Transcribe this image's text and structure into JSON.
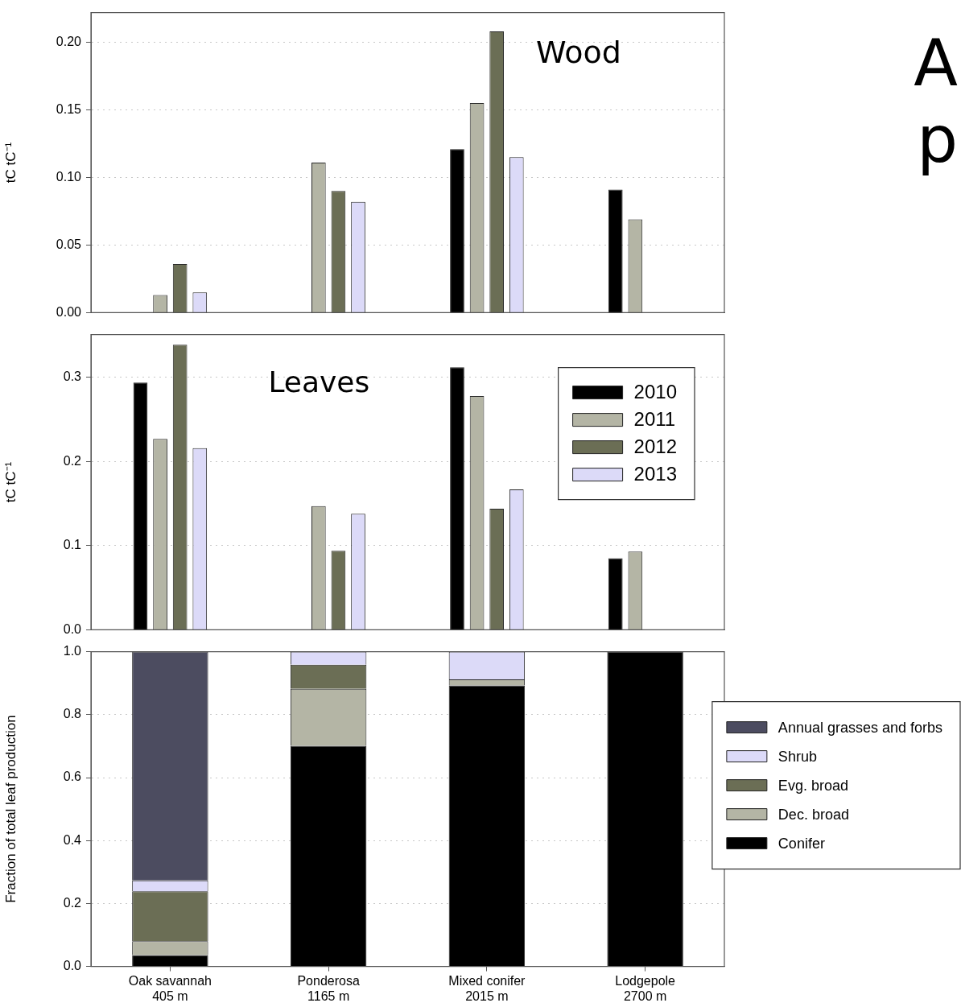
{
  "chart_data": [
    {
      "type": "bar",
      "ylabel": "tC tC⁻¹",
      "categories": [
        null,
        null,
        null,
        null
      ],
      "series": [
        {
          "color": "#000000",
          "values": [
            null,
            null,
            0.121,
            0.091
          ]
        },
        {
          "color": "#b4b5a5",
          "values": [
            0.013,
            0.111,
            0.155,
            0.069
          ]
        },
        {
          "color": "#6b6e55",
          "values": [
            0.036,
            0.09,
            0.208,
            null
          ]
        },
        {
          "color": "#dcdaf8",
          "values": [
            0.015,
            0.082,
            0.115,
            null
          ]
        }
      ],
      "ylim": [
        0,
        0.222
      ],
      "yticks": [
        {
          "value": 0,
          "label": "0.00"
        },
        {
          "value": 0.05,
          "label": "0.05"
        },
        {
          "value": 0.1,
          "label": "0.10"
        },
        {
          "value": 0.15,
          "label": "0.15"
        },
        {
          "value": 0.2,
          "label": "0.20"
        }
      ],
      "grid": "y",
      "tick_labels": "y",
      "annotations": [
        "Wood",
        "A",
        "p"
      ]
    },
    {
      "type": "bar",
      "ylabel": "tC tC⁻¹",
      "categories": [
        null,
        null,
        null,
        null
      ],
      "series": [
        {
          "name": "2010",
          "color": "#000000",
          "values": [
            0.294,
            null,
            0.312,
            0.085
          ]
        },
        {
          "name": "2011",
          "color": "#b4b5a5",
          "values": [
            0.227,
            0.147,
            0.278,
            0.093
          ]
        },
        {
          "name": "2012",
          "color": "#6b6e55",
          "values": [
            0.339,
            0.094,
            0.144,
            null
          ]
        },
        {
          "name": "2013",
          "color": "#dcdaf8",
          "values": [
            0.216,
            0.138,
            0.167,
            null
          ]
        }
      ],
      "ylim": [
        0,
        0.351
      ],
      "yticks": [
        {
          "value": 0,
          "label": "0.0"
        },
        {
          "value": 0.1,
          "label": "0.1"
        },
        {
          "value": 0.2,
          "label": "0.2"
        },
        {
          "value": 0.3,
          "label": "0.3"
        }
      ],
      "grid": "y",
      "tick_labels": "y",
      "legend": "top right",
      "annotations": [
        "Leaves"
      ]
    },
    {
      "type": "bar",
      "stacked": true,
      "ylabel": "Fraction of total leaf production",
      "categories": [
        "Oak savannah\n405 m",
        "Ponderosa\n1165 m",
        "Mixed conifer\n2015 m",
        "Lodgepole\n2700 m"
      ],
      "series": [
        {
          "name": "Conifer",
          "color": "#000000",
          "values": [
            0.036,
            0.701,
            0.893,
            1.0
          ]
        },
        {
          "name": "Dec. broad",
          "color": "#b4b5a5",
          "values": [
            0.044,
            0.181,
            0.019,
            0
          ]
        },
        {
          "name": "Evg. broad",
          "color": "#6b6e55",
          "values": [
            0.159,
            0.077,
            0,
            0
          ]
        },
        {
          "name": "Shrub",
          "color": "#dcdaf8",
          "values": [
            0.034,
            0.041,
            0.088,
            0
          ]
        },
        {
          "name": "Annual grasses and forbs",
          "color": "#4c4c60",
          "values": [
            0.727,
            0,
            0,
            0
          ]
        }
      ],
      "ylim": [
        0,
        1
      ],
      "yticks": [
        {
          "value": 0,
          "label": "0.0"
        },
        {
          "value": 0.2,
          "label": "0.2"
        },
        {
          "value": 0.4,
          "label": "0.4"
        },
        {
          "value": 0.6,
          "label": "0.6"
        },
        {
          "value": 0.8,
          "label": "0.8"
        },
        {
          "value": 1,
          "label": "1.0"
        }
      ],
      "grid": "y",
      "legend": "right"
    }
  ]
}
